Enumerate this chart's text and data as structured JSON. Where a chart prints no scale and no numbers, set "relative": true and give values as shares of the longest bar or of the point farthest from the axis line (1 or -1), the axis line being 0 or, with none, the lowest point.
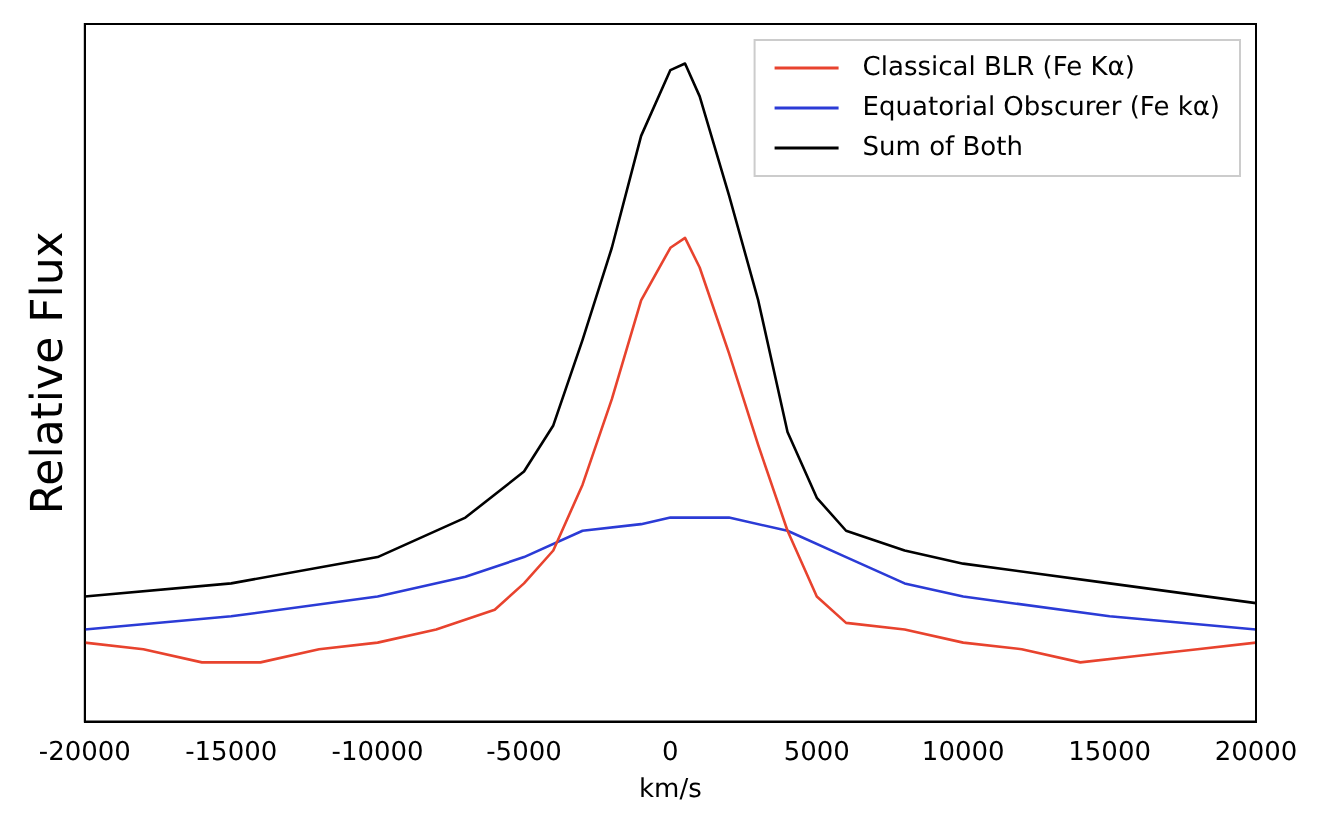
{
  "chart_data": {
    "type": "line",
    "relative": true,
    "xlabel": "km/s",
    "ylabel": "Relative Flux",
    "xlim": [
      -20000,
      20000
    ],
    "xticks": [
      -20000,
      -15000,
      -10000,
      -5000,
      0,
      5000,
      10000,
      15000,
      20000
    ],
    "grid": false,
    "legend": "top right",
    "marker": "none",
    "line_style": "solid",
    "series": [
      {
        "name": "Classical BLR (Fe Kα)",
        "color": "#e8432e",
        "x": [
          -20000,
          -18000,
          -16000,
          -14000,
          -12000,
          -10000,
          -8000,
          -6000,
          -5000,
          -4000,
          -3000,
          -2000,
          -1000,
          0,
          500,
          1000,
          2000,
          3000,
          4000,
          5000,
          6000,
          8000,
          10000,
          12000,
          14000,
          16000,
          18000,
          20000
        ],
        "values": [
          0.12,
          0.11,
          0.09,
          0.09,
          0.11,
          0.12,
          0.14,
          0.17,
          0.21,
          0.26,
          0.36,
          0.49,
          0.64,
          0.72,
          0.735,
          0.69,
          0.56,
          0.42,
          0.29,
          0.19,
          0.15,
          0.14,
          0.12,
          0.11,
          0.09,
          0.1,
          0.11,
          0.12
        ]
      },
      {
        "name": "Equatorial Obscurer (Fe kα)",
        "color": "#2b3bd6",
        "x": [
          -20000,
          -15000,
          -10000,
          -7000,
          -5000,
          -3000,
          -1000,
          0,
          2000,
          4000,
          6000,
          8000,
          10000,
          15000,
          20000
        ],
        "values": [
          0.14,
          0.16,
          0.19,
          0.22,
          0.25,
          0.29,
          0.3,
          0.31,
          0.31,
          0.29,
          0.25,
          0.21,
          0.19,
          0.16,
          0.14
        ]
      },
      {
        "name": "Sum of Both",
        "color": "#000000",
        "x": [
          -20000,
          -15000,
          -10000,
          -7000,
          -5000,
          -4000,
          -3000,
          -2000,
          -1000,
          0,
          500,
          1000,
          2000,
          3000,
          4000,
          5000,
          6000,
          8000,
          10000,
          15000,
          20000
        ],
        "values": [
          0.19,
          0.21,
          0.25,
          0.31,
          0.38,
          0.45,
          0.58,
          0.72,
          0.89,
          0.99,
          1,
          0.95,
          0.8,
          0.64,
          0.44,
          0.34,
          0.29,
          0.26,
          0.24,
          0.21,
          0.18
        ]
      }
    ]
  }
}
